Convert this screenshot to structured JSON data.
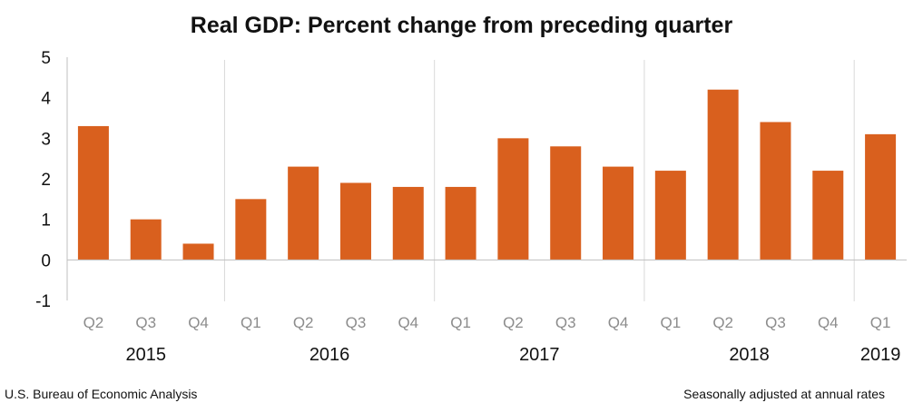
{
  "chart_data": {
    "type": "bar",
    "title": "Real GDP:  Percent change from preceding quarter",
    "categories": [
      "Q2",
      "Q3",
      "Q4",
      "Q1",
      "Q2",
      "Q3",
      "Q4",
      "Q1",
      "Q2",
      "Q3",
      "Q4",
      "Q1",
      "Q2",
      "Q3",
      "Q4",
      "Q1"
    ],
    "years": [
      "2015",
      "2016",
      "2017",
      "2018",
      "2019"
    ],
    "year_of_category": [
      0,
      0,
      0,
      1,
      1,
      1,
      1,
      2,
      2,
      2,
      2,
      3,
      3,
      3,
      3,
      4
    ],
    "values": [
      3.3,
      1.0,
      0.4,
      1.5,
      2.3,
      1.9,
      1.8,
      1.8,
      3.0,
      2.8,
      2.3,
      2.2,
      4.2,
      3.4,
      2.2,
      3.1
    ],
    "yticks": [
      "5",
      "4",
      "3",
      "2",
      "1",
      "0",
      "-1"
    ],
    "ylim": [
      -1,
      5
    ],
    "xlabel": "",
    "ylabel": "",
    "bar_color": "#d9601e",
    "grid": false
  },
  "footer": {
    "source": "U.S. Bureau of Economic Analysis",
    "note": "Seasonally adjusted at annual rates"
  }
}
